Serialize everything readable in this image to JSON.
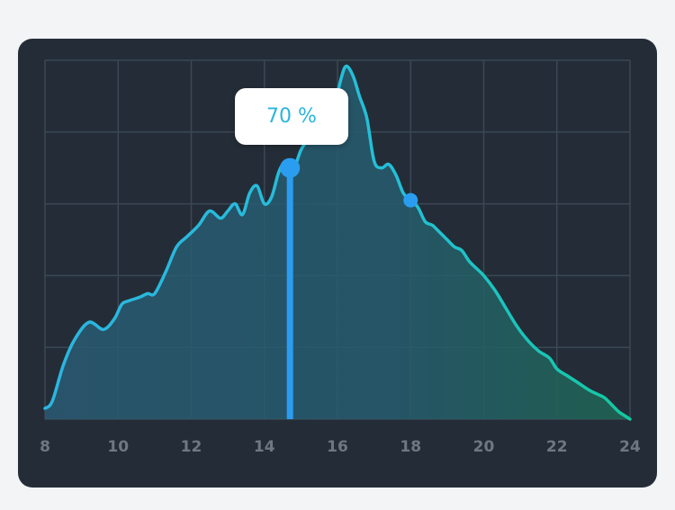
{
  "chart_data": {
    "type": "area",
    "x_ticks": [
      8,
      10,
      12,
      14,
      16,
      18,
      20,
      22,
      24
    ],
    "xlim": [
      8,
      24
    ],
    "ylim": [
      0,
      100
    ],
    "grid": true,
    "x": [
      8,
      8.2,
      8.5,
      8.8,
      9.2,
      9.6,
      9.9,
      10.1,
      10.3,
      10.6,
      10.8,
      11.0,
      11.3,
      11.6,
      11.9,
      12.2,
      12.5,
      12.8,
      13.0,
      13.2,
      13.4,
      13.6,
      13.8,
      14.0,
      14.2,
      14.4,
      14.6,
      14.8,
      15.0,
      15.2,
      15.4,
      15.6,
      15.8,
      16.0,
      16.1,
      16.2,
      16.3,
      16.45,
      16.6,
      16.8,
      17.0,
      17.2,
      17.4,
      17.6,
      17.8,
      18.0,
      18.2,
      18.4,
      18.6,
      18.8,
      19.0,
      19.2,
      19.4,
      19.6,
      19.8,
      20.0,
      20.3,
      20.6,
      20.9,
      21.2,
      21.5,
      21.8,
      22.0,
      22.3,
      22.6,
      22.9,
      23.1,
      23.3,
      23.5,
      23.7,
      23.85,
      24
    ],
    "y": [
      3,
      5,
      15,
      22,
      27,
      25,
      28,
      32,
      33,
      34,
      35,
      35,
      41,
      48,
      51,
      54,
      58,
      56,
      58,
      60,
      57,
      63,
      65,
      60,
      62,
      69,
      72,
      70,
      75,
      78,
      81,
      82,
      86,
      91,
      95,
      98,
      98,
      95,
      90,
      84,
      72,
      70,
      71,
      68,
      63,
      61,
      59,
      55,
      54,
      52,
      50,
      48,
      47,
      44,
      42,
      40,
      36,
      31,
      26,
      22,
      19,
      17,
      14,
      12,
      10,
      8,
      7,
      6,
      4,
      2,
      1,
      0
    ],
    "highlight": {
      "x": 14.7,
      "y": 70,
      "label": "70 %"
    },
    "secondary_point": {
      "x": 18,
      "y": 61
    }
  },
  "colors": {
    "line_start": "#2bb5e0",
    "line_end": "#12c9a0",
    "fill_start": "#2a5a73",
    "fill_end": "#1f6653",
    "marker": "#2a9df0",
    "grid": "#3a4854",
    "card": "#242d37",
    "tick": "#6e7883"
  }
}
